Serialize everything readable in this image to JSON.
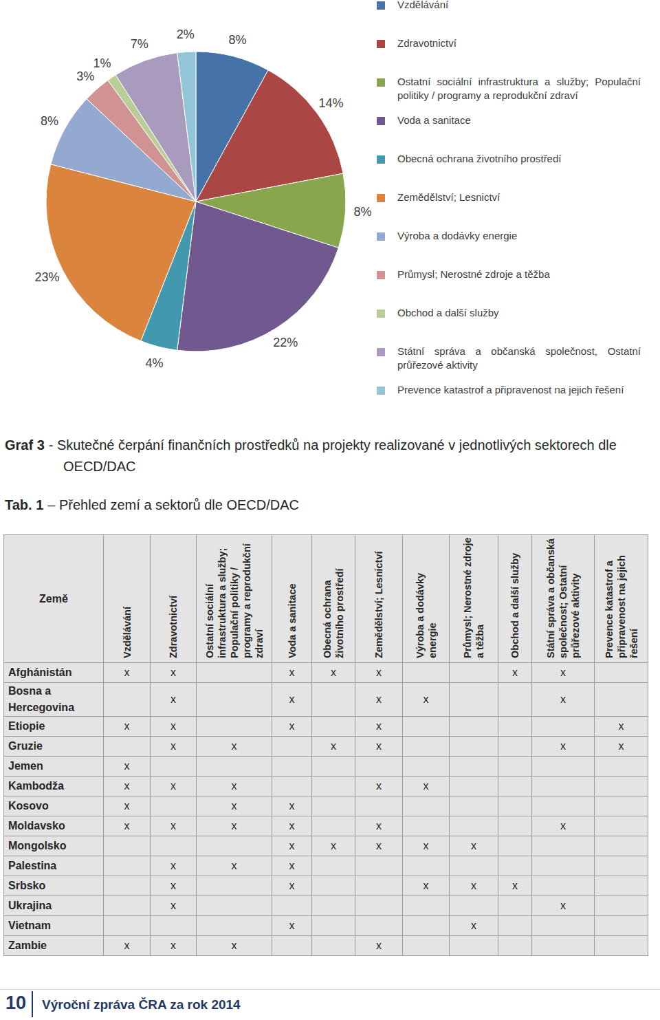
{
  "chart_data": {
    "type": "pie",
    "categories": [
      "Vzdělávání",
      "Zdravotnictví",
      "Ostatní sociální infrastruktura a služby; Populační politiky / programy a reprodukční zdraví",
      "Voda a sanitace",
      "Obecná ochrana životního prostředí",
      "Zemědělství; Lesnictví",
      "Výroba a dodávky energie",
      "Průmysl; Nerostné zdroje a těžba",
      "Obchod a další služby",
      "Státní správa a občanská společnost, Ostatní průřezové aktivity",
      "Prevence katastrof a připravenost na jejich řešení"
    ],
    "values": [
      8,
      14,
      8,
      22,
      4,
      23,
      8,
      3,
      1,
      7,
      2
    ],
    "value_labels": [
      "8%",
      "14%",
      "8%",
      "22%",
      "4%",
      "23%",
      "8%",
      "3%",
      "1%",
      "7%",
      "2%"
    ],
    "colors": [
      "#4572a7",
      "#aa4643",
      "#89a54e",
      "#71588f",
      "#4198af",
      "#db843d",
      "#93a9cf",
      "#d19392",
      "#b9cd96",
      "#a99bbd",
      "#92c5d6"
    ],
    "data_labels": true,
    "legend": "right"
  },
  "caption": {
    "label": "Graf 3",
    "text": "- Skutečné čerpání finančních prostředků na projekty realizované v jednotlivých sektorech dle OECD/DAC"
  },
  "table_caption": {
    "label": "Tab. 1",
    "text": "– Přehled zemí a sektorů dle OECD/DAC"
  },
  "table": {
    "header": [
      "Země",
      "Vzdělávání",
      "Zdravotnictví",
      "Ostatní sociální infrastruktura a služby; Populační politiky / programy a reprodukční zdraví",
      "Voda a sanitace",
      "Obecná ochrana životního prostředí",
      "Zemědělství; Lesnictví",
      "Výroba a dodávky energie",
      "Průmysl; Nerostné zdroje a těžba",
      "Obchod a další služby",
      "Státní správa a občanská společnost; Ostatní průřezové aktivity",
      "Prevence katastrof a připravenost na jejich řešení"
    ],
    "rows": [
      [
        "Afghánistán",
        "x",
        "x",
        null,
        "x",
        "x",
        "x",
        null,
        null,
        "x",
        "x",
        null
      ],
      [
        "Bosna a Hercegovina",
        null,
        "x",
        null,
        "x",
        null,
        "x",
        "x",
        null,
        null,
        "x",
        null
      ],
      [
        "Etiopie",
        "x",
        "x",
        null,
        "x",
        null,
        "x",
        null,
        null,
        null,
        null,
        "x"
      ],
      [
        "Gruzie",
        null,
        "x",
        "x",
        null,
        "x",
        "x",
        null,
        null,
        null,
        "x",
        "x"
      ],
      [
        "Jemen",
        "x",
        null,
        null,
        null,
        null,
        null,
        null,
        null,
        null,
        null,
        null
      ],
      [
        "Kambodža",
        "x",
        "x",
        "x",
        null,
        null,
        "x",
        "x",
        null,
        null,
        null,
        null
      ],
      [
        "Kosovo",
        "x",
        null,
        "x",
        "x",
        null,
        null,
        null,
        null,
        null,
        null,
        null
      ],
      [
        "Moldavsko",
        "x",
        "x",
        "x",
        "x",
        null,
        "x",
        null,
        null,
        null,
        "x",
        null
      ],
      [
        "Mongolsko",
        null,
        null,
        null,
        "x",
        "x",
        "x",
        "x",
        "x",
        null,
        null,
        null
      ],
      [
        "Palestina",
        null,
        "x",
        "x",
        "x",
        null,
        null,
        null,
        null,
        null,
        null,
        null
      ],
      [
        "Srbsko",
        null,
        "x",
        null,
        "x",
        null,
        null,
        "x",
        "x",
        "x",
        null,
        null
      ],
      [
        "Ukrajina",
        null,
        "x",
        null,
        null,
        null,
        null,
        null,
        null,
        null,
        "x",
        null
      ],
      [
        "Vietnam",
        null,
        null,
        null,
        "x",
        null,
        null,
        null,
        "x",
        null,
        null,
        null
      ],
      [
        "Zambie",
        "x",
        "x",
        "x",
        null,
        null,
        "x",
        null,
        null,
        null,
        null,
        null
      ]
    ]
  },
  "footer": {
    "page": "10",
    "title": "Výroční zpráva ČRA za rok 2014"
  }
}
